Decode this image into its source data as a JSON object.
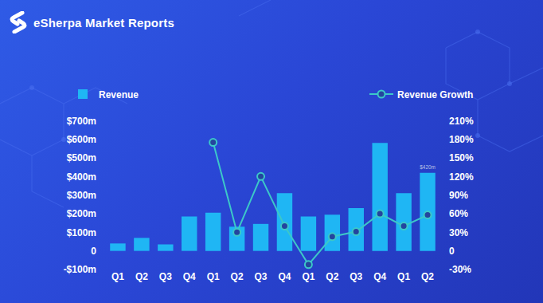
{
  "brand": "eSherpa Market Reports",
  "chart_data": {
    "type": "bar",
    "categories": [
      "Q1",
      "Q2",
      "Q3",
      "Q4",
      "Q1",
      "Q2",
      "Q3",
      "Q4",
      "Q1",
      "Q2",
      "Q3",
      "Q4",
      "Q1",
      "Q2"
    ],
    "series": [
      {
        "name": "Revenue",
        "type": "bar",
        "color": "#1fb6f4",
        "values": [
          40,
          70,
          35,
          185,
          205,
          130,
          145,
          310,
          185,
          195,
          230,
          580,
          310,
          420
        ],
        "value_labels": [
          null,
          null,
          null,
          null,
          null,
          null,
          null,
          null,
          null,
          null,
          null,
          null,
          null,
          "$420m"
        ]
      },
      {
        "name": "Revenue Growth",
        "type": "line",
        "axis": "y2",
        "color": "#3cc8c8",
        "marker": "circle",
        "values": [
          null,
          null,
          null,
          null,
          175,
          30,
          120,
          40,
          -22,
          23,
          31,
          60,
          40,
          58
        ]
      }
    ],
    "ylim": [
      -100,
      700
    ],
    "yticks": [
      {
        "value": -100,
        "label": "-$100m"
      },
      0,
      {
        "value": 100,
        "label": "$100m"
      },
      {
        "value": 200,
        "label": "$200m"
      },
      {
        "value": 300,
        "label": "$300m"
      },
      {
        "value": 400,
        "label": "$400m"
      },
      {
        "value": 500,
        "label": "$500m"
      },
      {
        "value": 600,
        "label": "$600m"
      },
      {
        "value": 700,
        "label": "$700m"
      }
    ],
    "y2lim": [
      -30,
      210
    ],
    "y2ticks": [
      {
        "value": -30,
        "label": "-30%"
      },
      0,
      {
        "value": 30,
        "label": "30%"
      },
      {
        "value": 60,
        "label": "60%"
      },
      {
        "value": 90,
        "label": "90%"
      },
      {
        "value": 120,
        "label": "120%"
      },
      {
        "value": 150,
        "label": "150%"
      },
      {
        "value": 180,
        "label": "180%"
      },
      {
        "value": 210,
        "label": "210%"
      }
    ],
    "grid": false,
    "legend": "top"
  }
}
